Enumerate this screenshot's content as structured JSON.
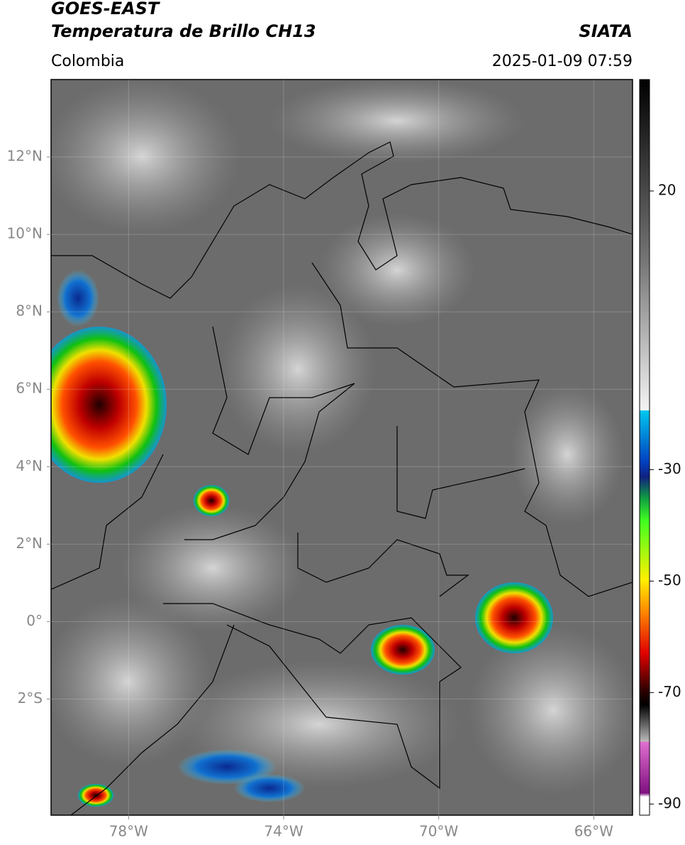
{
  "header": {
    "title": "GOES-EAST",
    "subtitle": "Temperatura de Brillo CH13",
    "source": "SIATA",
    "region": "Colombia",
    "timestamp": "2025-01-09 07:59"
  },
  "map": {
    "lon_range": [
      -80,
      -65
    ],
    "lat_range": [
      -5,
      14
    ],
    "lat_ticks": [
      {
        "value": 12,
        "label": "12°N"
      },
      {
        "value": 10,
        "label": "10°N"
      },
      {
        "value": 8,
        "label": "8°N"
      },
      {
        "value": 6,
        "label": "6°N"
      },
      {
        "value": 4,
        "label": "4°N"
      },
      {
        "value": 2,
        "label": "2°N"
      },
      {
        "value": 0,
        "label": "0°"
      },
      {
        "value": -2,
        "label": "2°S"
      }
    ],
    "lon_ticks": [
      {
        "value": -78,
        "label": "78°W"
      },
      {
        "value": -74,
        "label": "74°W"
      },
      {
        "value": -70,
        "label": "70°W"
      },
      {
        "value": -66,
        "label": "66°W"
      }
    ]
  },
  "colorbar": {
    "range": [
      40,
      -92
    ],
    "ticks": [
      20,
      -30,
      -50,
      -70,
      -90
    ]
  }
}
